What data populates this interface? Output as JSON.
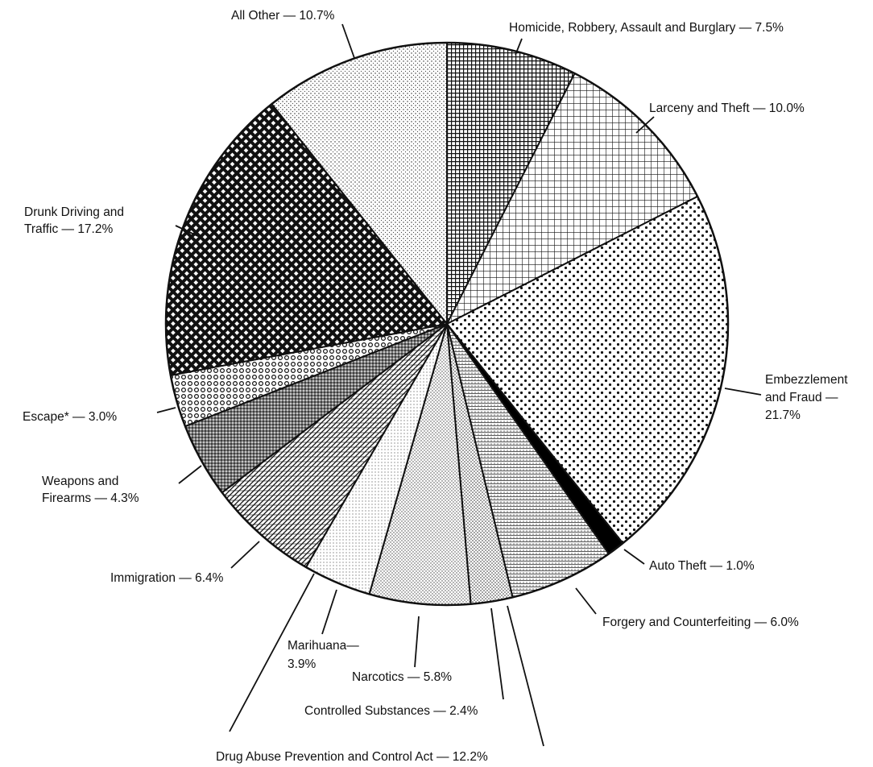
{
  "chart_data": {
    "type": "pie",
    "categories": [
      [
        "Homicide, Robbery, Assault and Burglary — 7.5%"
      ],
      [
        "Larceny and Theft — 10.0%"
      ],
      [
        "Embezzlement",
        "and Fraud —",
        "21.7%"
      ],
      [
        "Auto Theft — 1.0%"
      ],
      [
        "Forgery and Counterfeiting — 6.0%"
      ],
      [
        "Controlled Substances — 2.4%"
      ],
      [
        "Narcotics — 5.8%"
      ],
      [
        "Marihuana—",
        "3.9%"
      ],
      [
        "Immigration — 6.4%"
      ],
      [
        "Weapons and",
        "Firearms — 4.3%"
      ],
      [
        "Escape* — 3.0%"
      ],
      [
        "Drunk Driving and",
        "Traffic — 17.2%"
      ],
      [
        "All Other — 10.7%"
      ]
    ],
    "values": [
      7.5,
      10.0,
      21.7,
      1.0,
      6.0,
      2.4,
      5.8,
      3.9,
      6.4,
      4.3,
      3.0,
      17.2,
      10.7
    ],
    "annotations": [
      {
        "text": "Drug Abuse Prevention and Control Act — 12.2%"
      }
    ]
  }
}
